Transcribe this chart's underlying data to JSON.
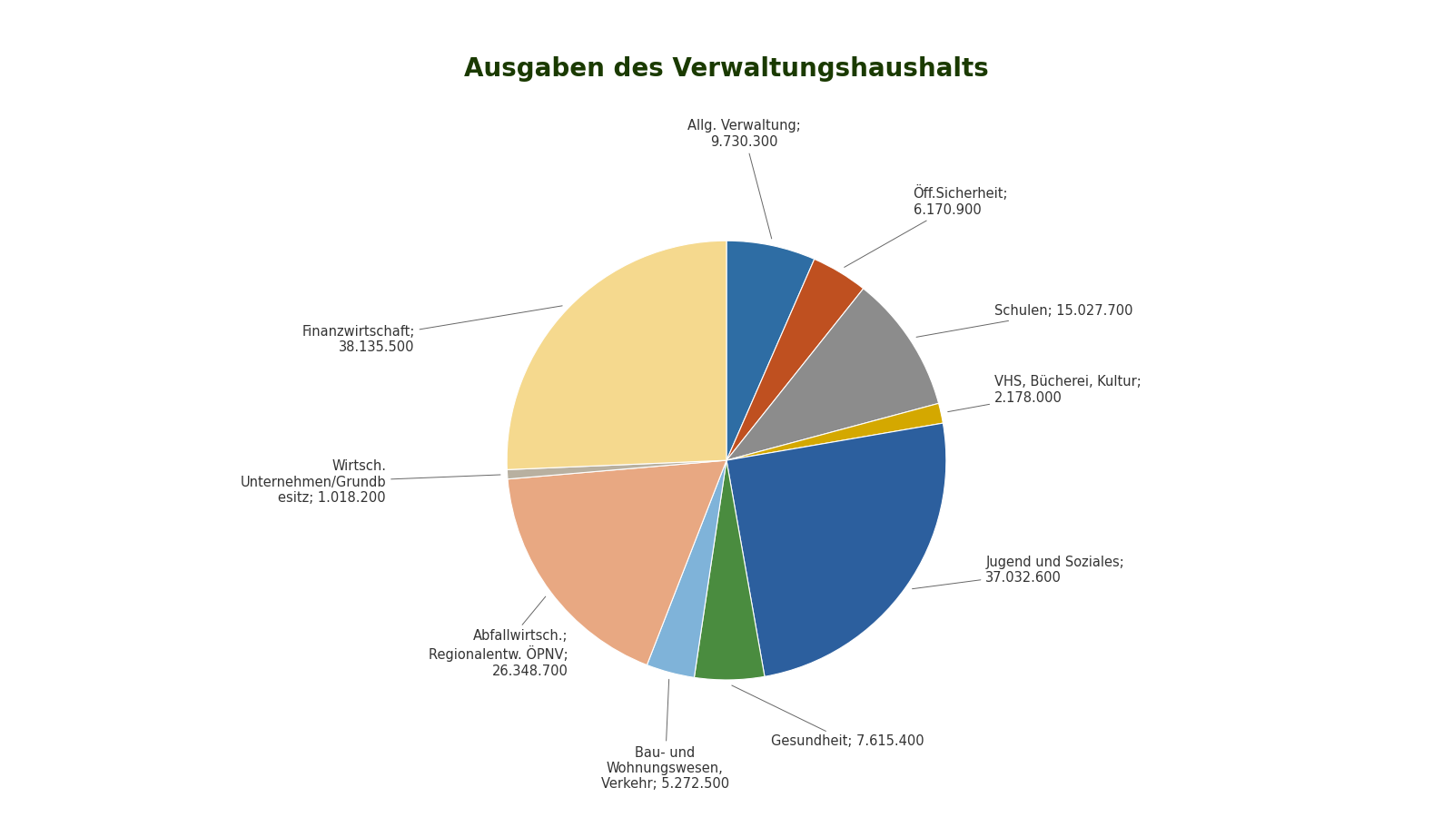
{
  "title": "Ausgaben des Verwaltungshaushalts",
  "title_bg_color": "#6ab04c",
  "title_text_color": "#1a3a00",
  "segments": [
    {
      "label": "Allg. Verwaltung;\n9.730.300",
      "value": 9730300,
      "color": "#2e6da4"
    },
    {
      "label": "Öff.Sicherheit;\n6.170.900",
      "value": 6170900,
      "color": "#bf5020"
    },
    {
      "label": "Schulen; 15.027.700",
      "value": 15027700,
      "color": "#8c8c8c"
    },
    {
      "label": "VHS, Bücherei, Kultur;\n2.178.000",
      "value": 2178000,
      "color": "#d4a800"
    },
    {
      "label": "Jugend und Soziales;\n37.032.600",
      "value": 37032600,
      "color": "#2c5f9e"
    },
    {
      "label": "Gesundheit; 7.615.400",
      "value": 7615400,
      "color": "#4a8c3f"
    },
    {
      "label": "Bau- und\nWohnungswesen,\nVerkehr; 5.272.500",
      "value": 5272500,
      "color": "#7fb3d9"
    },
    {
      "label": "Abfallwirtsch.;\nRegionalentw. ÖPNV;\n26.348.700",
      "value": 26348700,
      "color": "#e8a882"
    },
    {
      "label": "Wirtsch.\nUnternehmen/Grundb\nesitz; 1.018.200",
      "value": 1018200,
      "color": "#b8b0a0"
    },
    {
      "label": "Finanzwirtschaft;\n38.135.500",
      "value": 38135500,
      "color": "#f5d98e"
    }
  ],
  "label_fontsize": 10.5,
  "title_fontsize": 20,
  "fig_width": 16.0,
  "fig_height": 9.0
}
